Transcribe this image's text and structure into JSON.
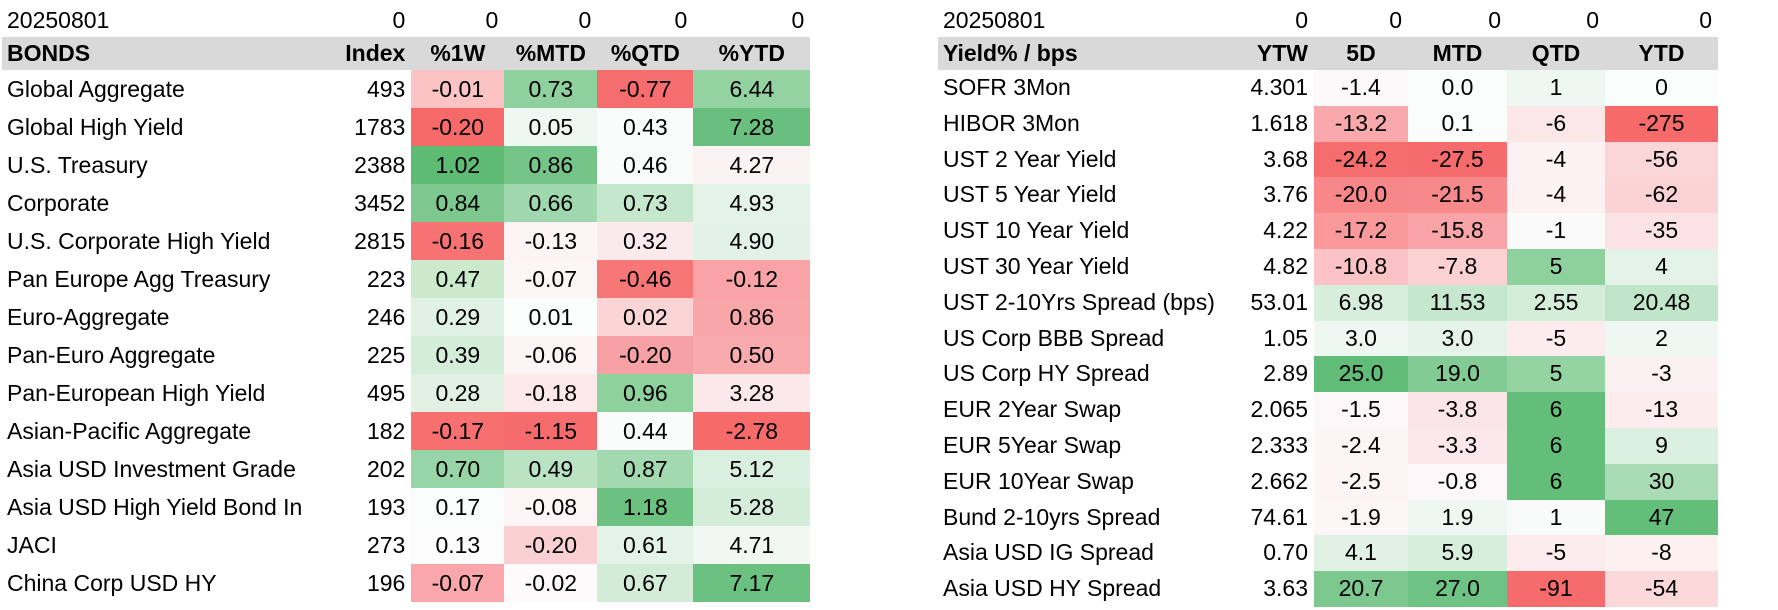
{
  "bonds": {
    "date": "20250801",
    "date_row_values": [
      "0",
      "0",
      "0",
      "0",
      "0"
    ],
    "headers": [
      "BONDS",
      "Index",
      "%1W",
      "%MTD",
      "%QTD",
      "%YTD"
    ],
    "rows": [
      {
        "name": "Global Aggregate",
        "index": "493",
        "w1": "-0.01",
        "mtd": "0.73",
        "qtd": "-0.77",
        "ytd": "6.44",
        "colors": [
          "#fbc3c3",
          "#8fd19e",
          "#f66d6d",
          "#93d2a1"
        ]
      },
      {
        "name": "Global High Yield",
        "index": "1783",
        "w1": "-0.20",
        "mtd": "0.05",
        "qtd": "0.43",
        "ytd": "7.28",
        "colors": [
          "#f66a6a",
          "#eef7f1",
          "#fafcfb",
          "#69c07e"
        ]
      },
      {
        "name": "U.S. Treasury",
        "index": "2388",
        "w1": "1.02",
        "mtd": "0.86",
        "qtd": "0.46",
        "ytd": "4.27",
        "colors": [
          "#5dbb73",
          "#75c589",
          "#fafcfb",
          "#fbf2f4"
        ]
      },
      {
        "name": "Corporate",
        "index": "3452",
        "w1": "0.84",
        "mtd": "0.66",
        "qtd": "0.73",
        "ytd": "4.93",
        "colors": [
          "#7cc88f",
          "#9ed8ac",
          "#c4e7cd",
          "#e4f3e8"
        ]
      },
      {
        "name": "U.S. Corporate High Yield",
        "index": "2815",
        "w1": "-0.16",
        "mtd": "-0.13",
        "qtd": "0.32",
        "ytd": "4.90",
        "colors": [
          "#f77373",
          "#fdf4f5",
          "#fbeaec",
          "#e3f2e7"
        ]
      },
      {
        "name": "Pan Europe Agg Treasury",
        "index": "223",
        "w1": "0.47",
        "mtd": "-0.07",
        "qtd": "-0.46",
        "ytd": "-0.12",
        "colors": [
          "#cbeacc",
          "#fdf6f7",
          "#f77777",
          "#f9a3a6"
        ]
      },
      {
        "name": "Euro-Aggregate",
        "index": "246",
        "w1": "0.29",
        "mtd": "0.01",
        "qtd": "0.02",
        "ytd": "0.86",
        "colors": [
          "#e0f2e4",
          "#fbfcfc",
          "#fbd4d6",
          "#f9a6a9"
        ]
      },
      {
        "name": "Pan-Euro Aggregate",
        "index": "225",
        "w1": "0.39",
        "mtd": "-0.06",
        "qtd": "-0.20",
        "ytd": "0.50",
        "colors": [
          "#d4edd9",
          "#fcf4f5",
          "#f8a1a4",
          "#f9aaad"
        ]
      },
      {
        "name": "Pan-European High Yield",
        "index": "495",
        "w1": "0.28",
        "mtd": "-0.18",
        "qtd": "0.96",
        "ytd": "3.28",
        "colors": [
          "#e1f2e5",
          "#fde8ea",
          "#8ed19d",
          "#fbe8ea"
        ]
      },
      {
        "name": "Asian-Pacific Aggregate",
        "index": "182",
        "w1": "-0.17",
        "mtd": "-1.15",
        "qtd": "0.44",
        "ytd": "-2.78",
        "colors": [
          "#f76f6f",
          "#f66b6b",
          "#fafcfb",
          "#f66a6a"
        ]
      },
      {
        "name": "Asia USD Investment Grade",
        "index": "202",
        "w1": "0.70",
        "mtd": "0.49",
        "qtd": "0.87",
        "ytd": "5.12",
        "colors": [
          "#98d5a6",
          "#b9e3c3",
          "#a3d9af",
          "#d9efdf"
        ]
      },
      {
        "name": "Asia USD High Yield Bond In",
        "index": "193",
        "w1": "0.17",
        "mtd": "-0.08",
        "qtd": "1.18",
        "ytd": "5.28",
        "colors": [
          "#fbfcfc",
          "#fdf5f6",
          "#6cc180",
          "#d4edd9"
        ]
      },
      {
        "name": "JACI",
        "index": "273",
        "w1": "0.13",
        "mtd": "-0.20",
        "qtd": "0.61",
        "ytd": "4.71",
        "colors": [
          "#fcfcfc",
          "#fbd0d2",
          "#e4f3e8",
          "#f1f8f3"
        ]
      },
      {
        "name": "China Corp USD HY",
        "index": "196",
        "w1": "-0.07",
        "mtd": "-0.02",
        "qtd": "0.67",
        "ytd": "7.17",
        "colors": [
          "#f9a7aa",
          "#fcfafa",
          "#d2ecd8",
          "#6bc17f"
        ]
      }
    ]
  },
  "yields": {
    "date": "20250801",
    "date_row_values": [
      "0",
      "0",
      "0",
      "0",
      "0"
    ],
    "headers": [
      "Yield% / bps",
      "YTW",
      "5D",
      "MTD",
      "QTD",
      "YTD"
    ],
    "rows": [
      {
        "name": "SOFR 3Mon",
        "ytw": "4.301",
        "d5": "-1.4",
        "mtd": "0.0",
        "qtd": "1",
        "ytd": "0",
        "colors": [
          "#fcf9fa",
          "#fbfcfc",
          "#eef7f1",
          "#fbfcfc"
        ]
      },
      {
        "name": "HIBOR 3Mon",
        "ytw": "1.618",
        "d5": "-13.2",
        "mtd": "0.1",
        "qtd": "-6",
        "ytd": "-275",
        "colors": [
          "#f9a9ac",
          "#fbfcfc",
          "#fbe6e8",
          "#f66a6a"
        ]
      },
      {
        "name": "UST 2 Year Yield",
        "ytw": "3.68",
        "d5": "-24.2",
        "mtd": "-27.5",
        "qtd": "-4",
        "ytd": "-56",
        "colors": [
          "#f66d6d",
          "#f66b6b",
          "#fcf2f3",
          "#fbd6d8"
        ]
      },
      {
        "name": "UST 5 Year Yield",
        "ytw": "3.76",
        "d5": "-20.0",
        "mtd": "-21.5",
        "qtd": "-4",
        "ytd": "-62",
        "colors": [
          "#f88789",
          "#f7898b",
          "#fcf2f3",
          "#fbd3d5"
        ]
      },
      {
        "name": "UST 10 Year Yield",
        "ytw": "4.22",
        "d5": "-17.2",
        "mtd": "-15.8",
        "qtd": "-1",
        "ytd": "-35",
        "colors": [
          "#f9999c",
          "#f9a5a8",
          "#fbfafa",
          "#fbe2e4"
        ]
      },
      {
        "name": "UST 30 Year Yield",
        "ytw": "4.82",
        "d5": "-10.8",
        "mtd": "-7.8",
        "qtd": "5",
        "ytd": "4",
        "colors": [
          "#fbc3c5",
          "#fbd1d3",
          "#8fd19e",
          "#e4f3e8"
        ]
      },
      {
        "name": "UST 2-10Yrs Spread (bps)",
        "ytw": "53.01",
        "d5": "6.98",
        "mtd": "11.53",
        "qtd": "2.55",
        "ytd": "20.48",
        "colors": [
          "#d7eedc",
          "#c4e7cd",
          "#d4edd9",
          "#c0e5c9"
        ]
      },
      {
        "name": "US Corp BBB Spread",
        "ytw": "1.05",
        "d5": "3.0",
        "mtd": "3.0",
        "qtd": "-5",
        "ytd": "2",
        "colors": [
          "#eef7f1",
          "#e5f3e8",
          "#fcecee",
          "#eef7f1"
        ]
      },
      {
        "name": "US Corp HY Spread",
        "ytw": "2.89",
        "d5": "25.0",
        "mtd": "19.0",
        "qtd": "5",
        "ytd": "-3",
        "colors": [
          "#60bc76",
          "#83cb95",
          "#94d3a2",
          "#fcf1f2"
        ]
      },
      {
        "name": "EUR 2Year Swap",
        "ytw": "2.065",
        "d5": "-1.5",
        "mtd": "-3.8",
        "qtd": "6",
        "ytd": "-13",
        "colors": [
          "#fcf8f9",
          "#fce5e7",
          "#63be79",
          "#fcecee"
        ]
      },
      {
        "name": "EUR 5Year Swap",
        "ytw": "2.333",
        "d5": "-2.4",
        "mtd": "-3.3",
        "qtd": "6",
        "ytd": "9",
        "colors": [
          "#fcf5f6",
          "#fce8ea",
          "#63be79",
          "#dcf0e1"
        ]
      },
      {
        "name": "EUR 10Year Swap",
        "ytw": "2.662",
        "d5": "-2.5",
        "mtd": "-0.8",
        "qtd": "6",
        "ytd": "30",
        "colors": [
          "#fcf4f5",
          "#fcf7f8",
          "#63be79",
          "#a9dcb5"
        ]
      },
      {
        "name": "Bund 2-10yrs Spread",
        "ytw": "74.61",
        "d5": "-1.9",
        "mtd": "1.9",
        "qtd": "1",
        "ytd": "47",
        "colors": [
          "#fcf6f7",
          "#eef7f1",
          "#f8fbf9",
          "#63be79"
        ]
      },
      {
        "name": "Asia USD IG Spread",
        "ytw": "0.70",
        "d5": "4.1",
        "mtd": "5.9",
        "qtd": "-5",
        "ytd": "-8",
        "colors": [
          "#e1f2e5",
          "#d7eedc",
          "#fcecee",
          "#fcf0f1"
        ]
      },
      {
        "name": "Asia USD HY Spread",
        "ytw": "3.63",
        "d5": "20.7",
        "mtd": "27.0",
        "qtd": "-91",
        "ytd": "-54",
        "colors": [
          "#7cc88f",
          "#6ec283",
          "#f66b6b",
          "#fbd8da"
        ]
      }
    ]
  }
}
